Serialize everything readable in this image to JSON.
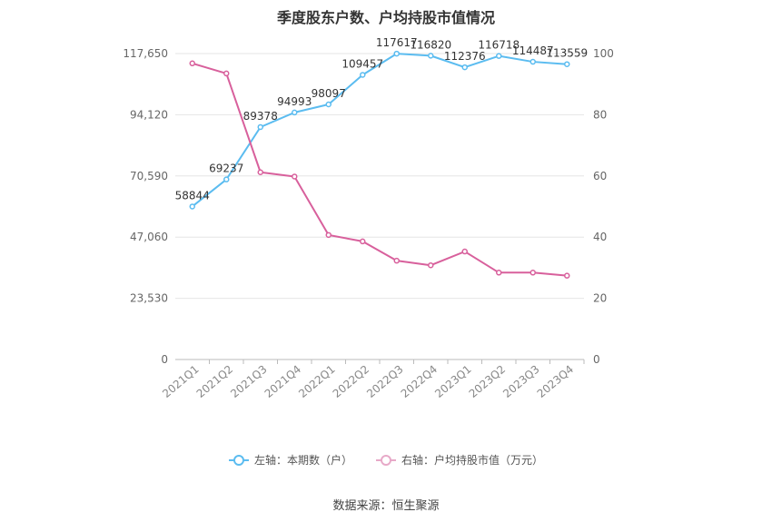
{
  "chart_data": {
    "type": "line",
    "title": "季度股东户数、户均持股市值情况",
    "categories": [
      "2021Q1",
      "2021Q2",
      "2021Q3",
      "2021Q4",
      "2022Q1",
      "2022Q2",
      "2022Q3",
      "2022Q4",
      "2023Q1",
      "2023Q2",
      "2023Q3",
      "2023Q4"
    ],
    "left_axis": {
      "ticks": [
        "0",
        "23,530",
        "47,060",
        "70,590",
        "94,120",
        "117,650"
      ],
      "ylim": [
        0,
        117650
      ]
    },
    "right_axis": {
      "ticks": [
        "0",
        "20",
        "40",
        "60",
        "80",
        "100"
      ],
      "ylim": [
        0,
        100
      ]
    },
    "series": [
      {
        "name": "左轴：本期数（户）",
        "axis": "left",
        "color": "#5bbcf0",
        "values": [
          58844,
          69237,
          89378,
          94993,
          98097,
          109457,
          117617,
          116820,
          112376,
          116718,
          114487,
          113559
        ],
        "labels": [
          "58844",
          "69237",
          "89378",
          "94993",
          "98097",
          "109457",
          "117617",
          "116820",
          "112376",
          "116718",
          "114487",
          "113559"
        ]
      },
      {
        "name": "右轴：户均持股市值（万元）",
        "axis": "right",
        "color": "#d8609c",
        "values": [
          96.8,
          93.5,
          61.2,
          59.8,
          40.7,
          38.6,
          32.3,
          30.8,
          35.3,
          28.4,
          28.4,
          27.4
        ]
      }
    ],
    "grid": true,
    "legend_position": "bottom"
  },
  "source": "数据来源：恒生聚源"
}
